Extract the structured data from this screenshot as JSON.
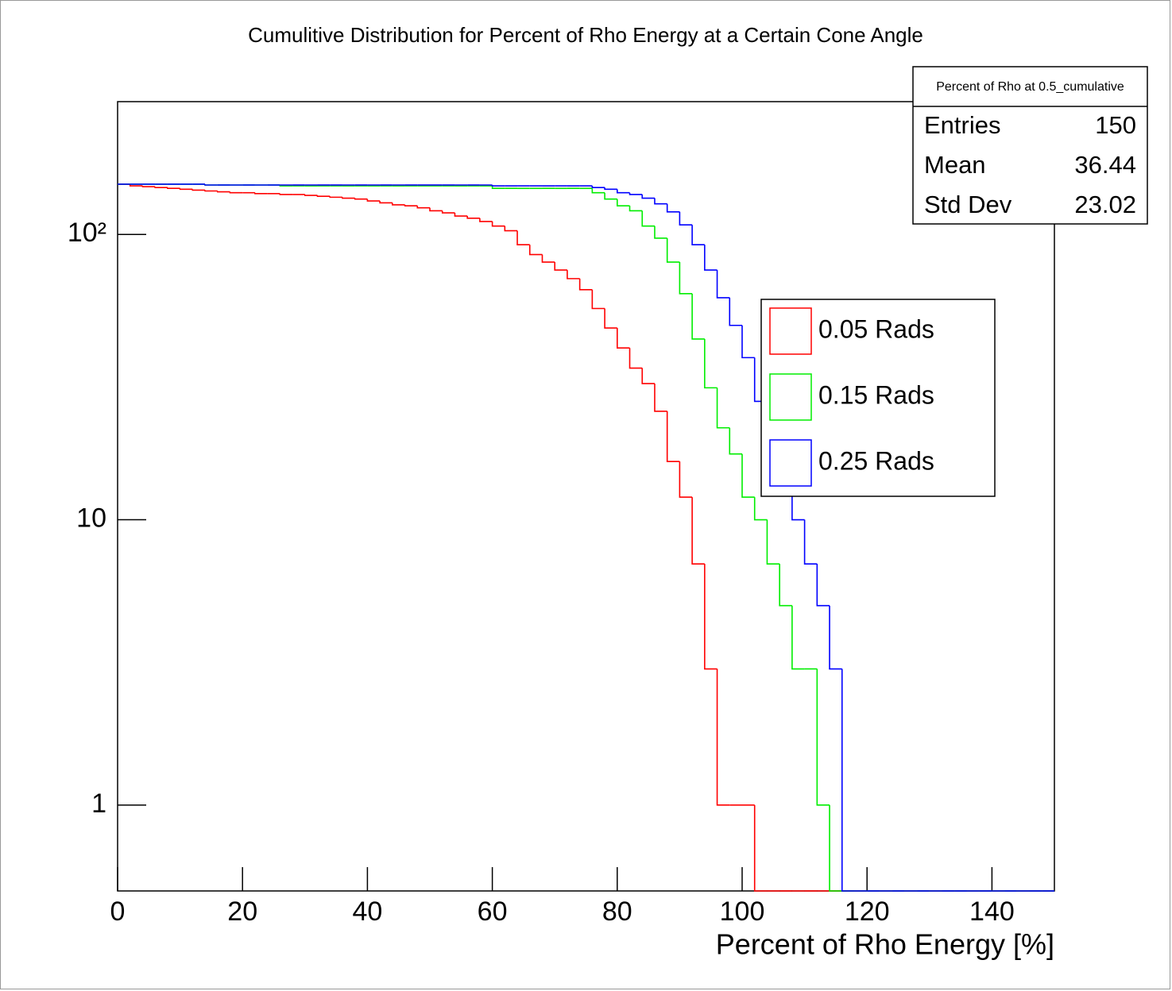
{
  "chart_data": {
    "type": "histogram",
    "title": "Cumulitive Distribution for Percent of Rho Energy at a Certain Cone Angle",
    "x_label": "Percent of Rho Energy [%]",
    "bins": [
      0,
      2,
      4,
      6,
      8,
      10,
      12,
      14,
      16,
      18,
      20,
      22,
      24,
      26,
      28,
      30,
      32,
      34,
      36,
      38,
      40,
      42,
      44,
      46,
      48,
      50,
      52,
      54,
      56,
      58,
      60,
      62,
      64,
      66,
      68,
      70,
      72,
      74,
      76,
      78,
      80,
      82,
      84,
      86,
      88,
      90,
      92,
      94,
      96,
      98,
      100,
      102,
      104,
      106,
      108,
      110,
      112,
      114,
      116,
      118,
      120,
      122,
      124,
      126,
      128,
      130,
      132,
      134,
      136,
      138,
      140,
      142,
      144,
      146,
      148,
      150
    ],
    "series": [
      {
        "name": "0.05 Rads",
        "color": "#ff0000",
        "values": [
          150,
          148,
          147,
          146,
          145,
          144,
          143,
          142,
          141,
          140,
          140,
          139,
          139,
          138,
          138,
          137,
          136,
          135,
          134,
          133,
          131,
          129,
          127,
          126,
          124,
          121,
          119,
          116,
          114,
          111,
          107,
          103,
          92,
          85,
          80,
          75,
          70,
          64,
          55,
          47,
          40,
          34,
          30,
          24,
          16,
          12,
          7,
          3,
          1,
          1,
          1,
          0,
          0,
          0,
          0,
          0,
          0,
          0,
          0,
          0,
          0,
          0,
          0,
          0,
          0,
          0,
          0,
          0,
          0,
          0,
          0,
          0,
          0,
          0,
          0
        ]
      },
      {
        "name": "0.15 Rads",
        "color": "#00ee00",
        "values": [
          150,
          150,
          150,
          150,
          150,
          150,
          150,
          149,
          149,
          149,
          149,
          149,
          149,
          148,
          148,
          148,
          148,
          148,
          148,
          148,
          148,
          148,
          148,
          148,
          148,
          148,
          148,
          148,
          148,
          148,
          145,
          145,
          145,
          145,
          145,
          145,
          145,
          145,
          140,
          133,
          126,
          121,
          107,
          97,
          80,
          62,
          43,
          29,
          21,
          17,
          12,
          10,
          7,
          5,
          3,
          3,
          1,
          0,
          0,
          0,
          0,
          0,
          0,
          0,
          0,
          0,
          0,
          0,
          0,
          0,
          0,
          0,
          0,
          0,
          0
        ]
      },
      {
        "name": "0.25 Rads",
        "color": "#0000ff",
        "values": [
          150,
          150,
          150,
          150,
          150,
          150,
          150,
          149,
          149,
          149,
          149,
          149,
          149,
          149,
          149,
          149,
          149,
          149,
          149,
          149,
          149,
          149,
          149,
          149,
          149,
          149,
          149,
          149,
          149,
          149,
          148,
          148,
          148,
          148,
          148,
          148,
          148,
          148,
          146,
          144,
          140,
          138,
          134,
          128,
          120,
          108,
          92,
          75,
          60,
          48,
          37,
          26,
          20,
          15,
          10,
          7,
          5,
          3,
          0,
          0,
          0,
          0,
          0,
          0,
          0,
          0,
          0,
          0,
          0,
          0,
          0,
          0,
          0,
          0,
          0
        ]
      }
    ],
    "xlim": [
      0,
      150
    ],
    "xticks": [
      0,
      20,
      40,
      60,
      80,
      100,
      120,
      140
    ],
    "ylim": [
      0.5,
      292
    ],
    "log_y": true,
    "yticks": [
      1,
      10,
      {
        "value": 100,
        "label": "10²"
      }
    ],
    "stats": {
      "title": "Percent of Rho at 0.5_cumulative",
      "rows": [
        [
          "Entries",
          150
        ],
        [
          "Mean",
          36.44
        ],
        [
          "Std Dev",
          23.02
        ]
      ]
    }
  }
}
